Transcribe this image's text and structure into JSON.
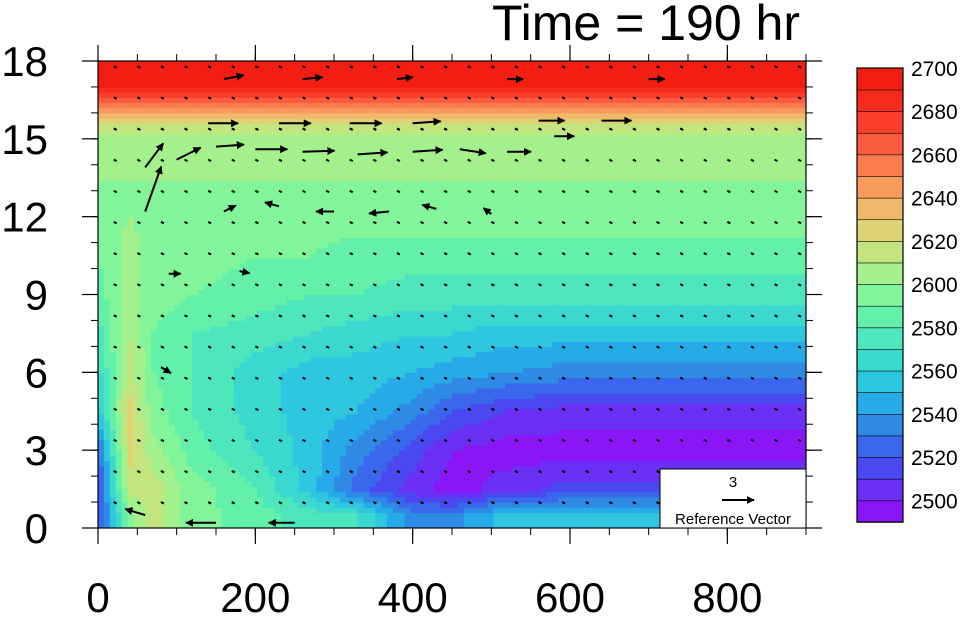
{
  "chart_data": {
    "type": "heatmap",
    "title": "Time = 190 hr",
    "xlabel": "",
    "ylabel": "",
    "xlim": [
      0,
      900
    ],
    "ylim": [
      0,
      18
    ],
    "x_ticks": [
      "0",
      "200",
      "400",
      "600",
      "800"
    ],
    "y_ticks": [
      "0",
      "3",
      "6",
      "9",
      "12",
      "15",
      "18"
    ],
    "colorbar": {
      "levels": [
        2495,
        2505,
        2515,
        2525,
        2535,
        2545,
        2555,
        2565,
        2575,
        2585,
        2595,
        2605,
        2615,
        2625,
        2635,
        2645,
        2655,
        2665,
        2675,
        2685,
        2695,
        2705
      ],
      "labels": [
        "2500",
        "2520",
        "2540",
        "2560",
        "2580",
        "2600",
        "2620",
        "2640",
        "2660",
        "2680",
        "2700"
      ],
      "colors": [
        "#8a16f5",
        "#6b2ff5",
        "#4a48f0",
        "#3a68ec",
        "#2f8ae6",
        "#27aae8",
        "#2fc6e0",
        "#3ad8cf",
        "#4de6bd",
        "#63f0a9",
        "#82f49a",
        "#a4f08c",
        "#c3e57f",
        "#dfd275",
        "#f0b86a",
        "#f79c5d",
        "#fb7c4e",
        "#fc5c3e",
        "#fb3e2c",
        "#f72a1e",
        "#f21e12"
      ]
    },
    "reference_vector": {
      "magnitude": "3",
      "label": "Reference Vector"
    },
    "field_description_rows": [
      {
        "height": 0.5,
        "values": [
          2520,
          2600,
          2620,
          2600,
          2590,
          2580,
          2575,
          2540,
          2540,
          2560,
          2560,
          2560,
          2560,
          2560,
          2560
        ]
      },
      {
        "height": 1.5,
        "values": [
          2520,
          2620,
          2620,
          2600,
          2585,
          2560,
          2530,
          2510,
          2500,
          2510,
          2520,
          2520,
          2520,
          2520,
          2520
        ]
      },
      {
        "height": 3,
        "values": [
          2530,
          2630,
          2610,
          2590,
          2575,
          2560,
          2540,
          2520,
          2505,
          2500,
          2500,
          2500,
          2500,
          2500,
          2500
        ]
      },
      {
        "height": 4.5,
        "values": [
          2560,
          2630,
          2600,
          2585,
          2570,
          2560,
          2555,
          2540,
          2525,
          2515,
          2510,
          2510,
          2510,
          2510,
          2510
        ]
      },
      {
        "height": 6,
        "values": [
          2570,
          2620,
          2595,
          2585,
          2570,
          2560,
          2560,
          2555,
          2550,
          2545,
          2540,
          2540,
          2540,
          2540,
          2540
        ]
      },
      {
        "height": 7.5,
        "values": [
          2580,
          2615,
          2595,
          2585,
          2580,
          2575,
          2570,
          2565,
          2565,
          2560,
          2560,
          2560,
          2560,
          2560,
          2560
        ]
      },
      {
        "height": 9,
        "values": [
          2590,
          2610,
          2600,
          2595,
          2590,
          2585,
          2585,
          2580,
          2580,
          2580,
          2580,
          2580,
          2580,
          2580,
          2580
        ]
      },
      {
        "height": 10.5,
        "values": [
          2595,
          2610,
          2600,
          2600,
          2595,
          2595,
          2590,
          2590,
          2590,
          2590,
          2590,
          2590,
          2590,
          2590,
          2590
        ]
      },
      {
        "height": 12,
        "values": [
          2600,
          2605,
          2600,
          2600,
          2600,
          2600,
          2600,
          2600,
          2600,
          2600,
          2600,
          2600,
          2600,
          2600,
          2600
        ]
      },
      {
        "height": 13.5,
        "values": [
          2605,
          2605,
          2605,
          2605,
          2605,
          2605,
          2605,
          2605,
          2605,
          2605,
          2605,
          2605,
          2605,
          2605,
          2605
        ]
      },
      {
        "height": 15,
        "values": [
          2610,
          2610,
          2610,
          2610,
          2610,
          2610,
          2610,
          2610,
          2610,
          2610,
          2610,
          2610,
          2610,
          2610,
          2610
        ]
      },
      {
        "height": 15.8,
        "values": [
          2630,
          2630,
          2630,
          2630,
          2630,
          2630,
          2630,
          2630,
          2630,
          2630,
          2630,
          2630,
          2630,
          2630,
          2630
        ]
      },
      {
        "height": 16.5,
        "values": [
          2670,
          2670,
          2670,
          2670,
          2670,
          2670,
          2670,
          2670,
          2670,
          2670,
          2670,
          2670,
          2670,
          2670,
          2670
        ]
      },
      {
        "height": 17.2,
        "values": [
          2700,
          2700,
          2700,
          2700,
          2700,
          2700,
          2700,
          2700,
          2700,
          2700,
          2700,
          2700,
          2700,
          2700,
          2700
        ]
      },
      {
        "height": 18,
        "values": [
          2710,
          2710,
          2710,
          2710,
          2710,
          2710,
          2710,
          2710,
          2710,
          2710,
          2710,
          2710,
          2710,
          2710,
          2710
        ]
      }
    ],
    "field_x": [
      0,
      40,
      70,
      120,
      200,
      270,
      330,
      400,
      450,
      520,
      600,
      680,
      750,
      820,
      900
    ],
    "vectors": [
      {
        "x": 60,
        "y": 12.2,
        "u": 1.6,
        "v": 4.5
      },
      {
        "x": 60,
        "y": 13.9,
        "u": 1.8,
        "v": 2.4
      },
      {
        "x": 100,
        "y": 14.2,
        "u": 2.4,
        "v": 1.2
      },
      {
        "x": 150,
        "y": 14.7,
        "u": 2.8,
        "v": 0.2
      },
      {
        "x": 200,
        "y": 14.6,
        "u": 3.2,
        "v": 0
      },
      {
        "x": 260,
        "y": 14.5,
        "u": 3.2,
        "v": 0.1
      },
      {
        "x": 330,
        "y": 14.4,
        "u": 3.0,
        "v": 0.2
      },
      {
        "x": 400,
        "y": 14.5,
        "u": 3.0,
        "v": 0.2
      },
      {
        "x": 460,
        "y": 14.6,
        "u": 2.6,
        "v": -0.4
      },
      {
        "x": 520,
        "y": 14.5,
        "u": 2.4,
        "v": 0
      },
      {
        "x": 140,
        "y": 15.6,
        "u": 3.0,
        "v": 0
      },
      {
        "x": 230,
        "y": 15.6,
        "u": 3.2,
        "v": 0
      },
      {
        "x": 320,
        "y": 15.6,
        "u": 3.2,
        "v": 0
      },
      {
        "x": 400,
        "y": 15.6,
        "u": 2.8,
        "v": 0.2
      },
      {
        "x": 560,
        "y": 15.7,
        "u": 2.6,
        "v": 0
      },
      {
        "x": 640,
        "y": 15.7,
        "u": 3.0,
        "v": 0
      },
      {
        "x": 160,
        "y": 17.3,
        "u": 2.0,
        "v": 0.4
      },
      {
        "x": 260,
        "y": 17.3,
        "u": 2.0,
        "v": 0.2
      },
      {
        "x": 380,
        "y": 17.3,
        "u": 1.6,
        "v": 0.2
      },
      {
        "x": 520,
        "y": 17.3,
        "u": 1.6,
        "v": 0
      },
      {
        "x": 700,
        "y": 17.3,
        "u": 1.6,
        "v": 0
      },
      {
        "x": 160,
        "y": 12.2,
        "u": 1.2,
        "v": 0.6
      },
      {
        "x": 230,
        "y": 12.4,
        "u": -1.4,
        "v": 0.4
      },
      {
        "x": 300,
        "y": 12.2,
        "u": -1.8,
        "v": 0.0
      },
      {
        "x": 370,
        "y": 12.2,
        "u": -2.0,
        "v": -0.2
      },
      {
        "x": 430,
        "y": 12.3,
        "u": -1.4,
        "v": 0.4
      },
      {
        "x": 500,
        "y": 12.1,
        "u": -0.8,
        "v": 0.6
      },
      {
        "x": 90,
        "y": 9.8,
        "u": 1.2,
        "v": 0
      },
      {
        "x": 180,
        "y": 9.9,
        "u": 1.0,
        "v": -0.2
      },
      {
        "x": 80,
        "y": 6.2,
        "u": 1.0,
        "v": -0.6
      },
      {
        "x": 60,
        "y": 0.5,
        "u": -2.0,
        "v": 0.6
      },
      {
        "x": 150,
        "y": 0.2,
        "u": -3.0,
        "v": 0
      },
      {
        "x": 250,
        "y": 0.2,
        "u": -2.6,
        "v": 0
      },
      {
        "x": 580,
        "y": 15.1,
        "u": 2.0,
        "v": 0
      }
    ]
  }
}
